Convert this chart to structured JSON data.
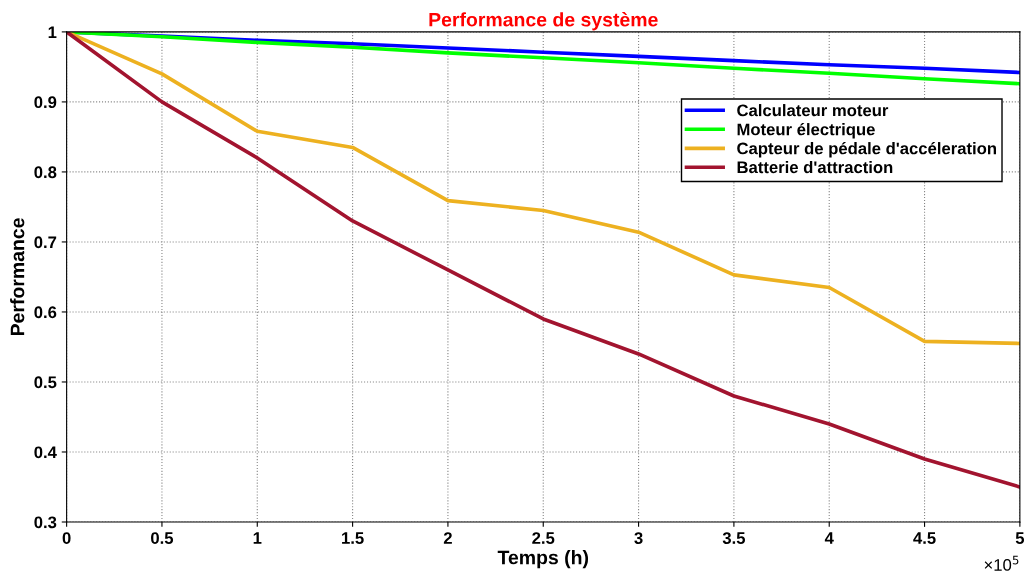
{
  "chart_data": {
    "type": "line",
    "title": "Performance de système",
    "xlabel": "Temps (h)",
    "ylabel": "Performance",
    "x": [
      0,
      0.5,
      1,
      1.5,
      2,
      2.5,
      3,
      3.5,
      4,
      4.5,
      5
    ],
    "series": [
      {
        "name": "Calculateur moteur",
        "color": "#0000ff",
        "values": [
          1,
          0.994,
          0.988,
          0.983,
          0.977,
          0.971,
          0.965,
          0.959,
          0.953,
          0.948,
          0.942
        ]
      },
      {
        "name": "Moteur électrique",
        "color": "#00ff00",
        "values": [
          1,
          0.993,
          0.985,
          0.978,
          0.97,
          0.963,
          0.956,
          0.948,
          0.941,
          0.933,
          0.926
        ]
      },
      {
        "name": "Capteur de pédale d'accéleration",
        "color": "#edb120",
        "values": [
          1,
          0.94,
          0.858,
          0.835,
          0.759,
          0.745,
          0.714,
          0.653,
          0.635,
          0.558,
          0.555
        ]
      },
      {
        "name": "Batterie d'attraction",
        "color": "#a2142f",
        "values": [
          1,
          0.9,
          0.82,
          0.73,
          0.66,
          0.59,
          0.54,
          0.48,
          0.44,
          0.39,
          0.35
        ]
      }
    ],
    "xlim": [
      0,
      5
    ],
    "xticks": [
      0,
      0.5,
      1,
      1.5,
      2,
      2.5,
      3,
      3.5,
      4,
      4.5,
      5
    ],
    "ylim": [
      0.3,
      1
    ],
    "yticks": [
      0.3,
      0.4,
      0.5,
      0.6,
      0.7,
      0.8,
      0.9,
      1
    ],
    "annotations": [
      "×10$^{5}$"
    ],
    "grid": true,
    "legend": "top right",
    "line_style": "solid",
    "marker": "none"
  }
}
